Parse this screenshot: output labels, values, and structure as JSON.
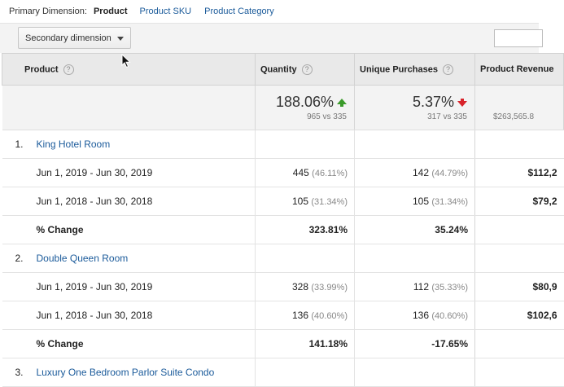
{
  "dimensions": {
    "label": "Primary Dimension:",
    "active": "Product",
    "links": [
      "Product SKU",
      "Product Category"
    ]
  },
  "toolbar": {
    "secondary_dimension_label": "Secondary dimension"
  },
  "table": {
    "headers": {
      "product": "Product",
      "quantity": "Quantity",
      "unique_purchases": "Unique Purchases",
      "product_revenue": "Product Revenue"
    },
    "help_glyph": "?",
    "totals": {
      "quantity": {
        "change": "188.06%",
        "compare": "965 vs 335",
        "direction": "up"
      },
      "unique_purchases": {
        "change": "5.37%",
        "compare": "317 vs 335",
        "direction": "down"
      },
      "product_revenue": {
        "compare": "$263,565.8"
      }
    },
    "colors": {
      "up": "#3a9a2a",
      "down": "#d8232a",
      "link": "#1a5a9a"
    },
    "products": [
      {
        "num": "1.",
        "name": "King Hotel Room",
        "rows": [
          {
            "label": "Jun 1, 2019 - Jun 30, 2019",
            "quantity": "445",
            "quantity_pct": "(46.11%)",
            "unique": "142",
            "unique_pct": "(44.79%)",
            "revenue": "$112,2"
          },
          {
            "label": "Jun 1, 2018 - Jun 30, 2018",
            "quantity": "105",
            "quantity_pct": "(31.34%)",
            "unique": "105",
            "unique_pct": "(31.34%)",
            "revenue": "$79,2"
          },
          {
            "label": "% Change",
            "quantity": "323.81%",
            "unique": "35.24%",
            "revenue": ""
          }
        ]
      },
      {
        "num": "2.",
        "name": "Double Queen Room",
        "rows": [
          {
            "label": "Jun 1, 2019 - Jun 30, 2019",
            "quantity": "328",
            "quantity_pct": "(33.99%)",
            "unique": "112",
            "unique_pct": "(35.33%)",
            "revenue": "$80,9"
          },
          {
            "label": "Jun 1, 2018 - Jun 30, 2018",
            "quantity": "136",
            "quantity_pct": "(40.60%)",
            "unique": "136",
            "unique_pct": "(40.60%)",
            "revenue": "$102,6"
          },
          {
            "label": "% Change",
            "quantity": "141.18%",
            "unique": "-17.65%",
            "revenue": ""
          }
        ]
      },
      {
        "num": "3.",
        "name": "Luxury One Bedroom Parlor Suite Condo",
        "rows": []
      }
    ]
  }
}
